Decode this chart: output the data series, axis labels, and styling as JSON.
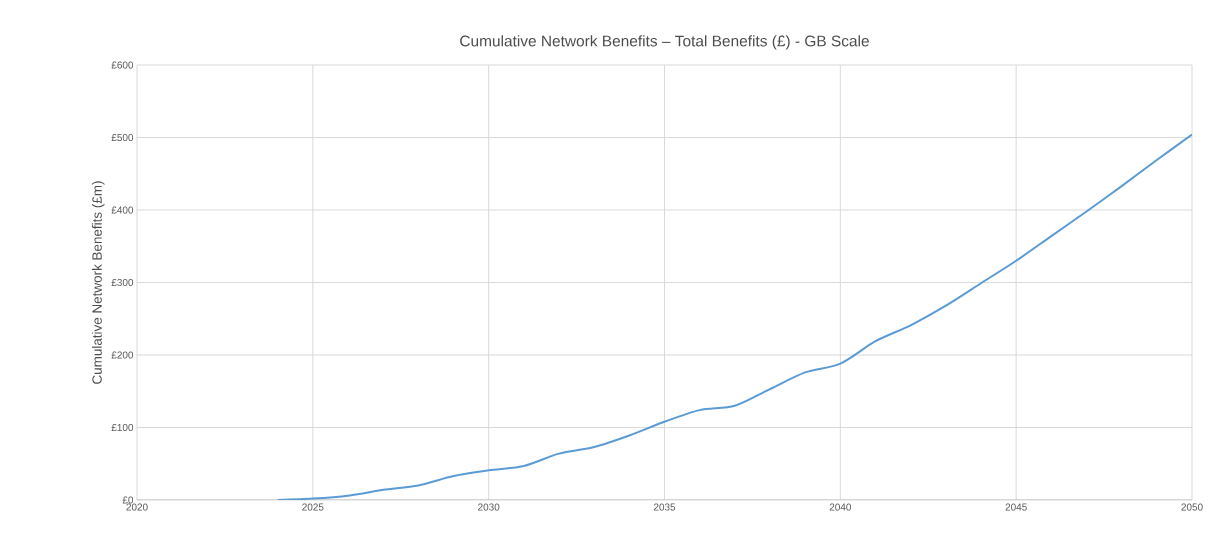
{
  "chart_data": {
    "type": "line",
    "title": "Cumulative Network Benefits   – Total Benefits (£) - GB Scale",
    "ylabel": "Cumulative Network Benefits (£m)",
    "x": [
      2024,
      2025,
      2026,
      2027,
      2028,
      2029,
      2030,
      2031,
      2032,
      2033,
      2034,
      2035,
      2036,
      2037,
      2038,
      2039,
      2040,
      2041,
      2042,
      2043,
      2044,
      2045,
      2046,
      2047,
      2048,
      2049,
      2050
    ],
    "series": [
      {
        "color": "#5b9bd5",
        "values": [
          0,
          2,
          6,
          14,
          20,
          33,
          41,
          47,
          64,
          73,
          89,
          108,
          124,
          130,
          153,
          176,
          188,
          219,
          241,
          268,
          299,
          330,
          364,
          398,
          433,
          469,
          504
        ]
      }
    ],
    "xlim": [
      2020,
      2050
    ],
    "xticks": [
      2020,
      2025,
      2030,
      2035,
      2040,
      2045,
      2050
    ],
    "ylim": [
      0,
      600
    ],
    "yticks": [
      {
        "value": 0,
        "label": "£0"
      },
      {
        "value": 100,
        "label": "£100"
      },
      {
        "value": 200,
        "label": "£200"
      },
      {
        "value": 300,
        "label": "£300"
      },
      {
        "value": 400,
        "label": "£400"
      },
      {
        "value": 500,
        "label": "£500"
      },
      {
        "value": 600,
        "label": "£600"
      }
    ],
    "grid": true,
    "marker": "none",
    "line_style": "solid"
  }
}
